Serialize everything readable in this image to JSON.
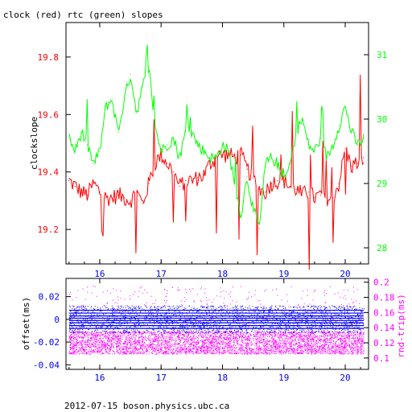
{
  "chart_data": [
    {
      "type": "line",
      "title": "clock (red) rtc (green) slopes",
      "ylabel": "clockslope",
      "xlim": [
        15.45,
        20.38
      ],
      "x_ticks": [
        16,
        17,
        18,
        19,
        20
      ],
      "left_axis": {
        "ylim": [
          19.08,
          19.92
        ],
        "ticks": [
          19.2,
          19.4,
          19.6,
          19.8
        ],
        "color": "#ff0000"
      },
      "right_axis": {
        "ylim": [
          27.75,
          31.5
        ],
        "ticks": [
          28,
          29,
          30,
          31
        ],
        "color": "#00ff00"
      },
      "series": [
        {
          "axis": "left",
          "color": "#ff0000",
          "x": [
            15.5,
            15.6,
            15.7,
            15.8,
            15.9,
            16.0,
            16.1,
            16.2,
            16.3,
            16.4,
            16.5,
            16.6,
            16.7,
            16.8,
            16.9,
            17.0,
            17.1,
            17.2,
            17.3,
            17.4,
            17.5,
            17.6,
            17.7,
            17.8,
            17.9,
            18.0,
            18.1,
            18.2,
            18.3,
            18.4,
            18.5,
            18.6,
            18.7,
            18.8,
            18.9,
            19.0,
            19.1,
            19.2,
            19.3,
            19.4,
            19.5,
            19.6,
            19.7,
            19.8,
            19.9,
            20.0,
            20.1,
            20.2,
            20.3
          ],
          "y": [
            19.37,
            19.35,
            19.33,
            19.32,
            19.36,
            19.33,
            19.31,
            19.31,
            19.32,
            19.31,
            19.3,
            19.33,
            19.29,
            19.36,
            19.43,
            19.46,
            19.43,
            19.4,
            19.35,
            19.37,
            19.37,
            19.38,
            19.39,
            19.43,
            19.45,
            19.46,
            19.46,
            19.45,
            19.46,
            19.41,
            19.38,
            19.34,
            19.33,
            19.36,
            19.37,
            19.37,
            19.35,
            19.34,
            19.32,
            19.33,
            19.31,
            19.32,
            19.31,
            19.31,
            19.36,
            19.48,
            19.42,
            19.43,
            19.45
          ]
        },
        {
          "axis": "right",
          "color": "#00ff00",
          "x": [
            15.5,
            15.6,
            15.7,
            15.8,
            15.9,
            16.0,
            16.1,
            16.2,
            16.3,
            16.4,
            16.5,
            16.6,
            16.7,
            16.8,
            16.9,
            17.0,
            17.1,
            17.2,
            17.3,
            17.4,
            17.5,
            17.6,
            17.7,
            17.8,
            17.9,
            18.0,
            18.1,
            18.2,
            18.3,
            18.4,
            18.5,
            18.6,
            18.7,
            18.8,
            18.9,
            19.0,
            19.1,
            19.2,
            19.3,
            19.4,
            19.5,
            19.6,
            19.7,
            19.8,
            19.9,
            20.0,
            20.1,
            20.2,
            20.3
          ],
          "y": [
            29.7,
            29.5,
            29.8,
            29.6,
            29.3,
            29.5,
            30.2,
            30.3,
            29.8,
            30.3,
            30.7,
            30.1,
            30.5,
            30.8,
            29.9,
            29.5,
            29.6,
            29.7,
            29.4,
            29.8,
            29.8,
            29.6,
            29.5,
            29.4,
            29.4,
            29.6,
            29.5,
            29.0,
            28.5,
            29.1,
            28.6,
            28.3,
            29.3,
            29.4,
            29.3,
            29.0,
            29.3,
            29.8,
            30.0,
            29.6,
            29.5,
            29.7,
            29.4,
            29.6,
            29.9,
            30.2,
            29.8,
            29.6,
            29.7
          ]
        }
      ]
    },
    {
      "type": "scatter",
      "xlim": [
        15.45,
        20.38
      ],
      "x_ticks": [
        16,
        17,
        18,
        19,
        20
      ],
      "ylabel": "offset(ms)",
      "y2label": "rnd-trip(ms)",
      "left_axis": {
        "ylim": [
          -0.044,
          0.036
        ],
        "ticks": [
          -0.04,
          -0.02,
          0,
          0.02
        ],
        "tick_labels": [
          "-0.04",
          "-0.02",
          "0",
          "0.02"
        ],
        "color": "#0000ff"
      },
      "right_axis": {
        "ylim": [
          0.085,
          0.205
        ],
        "ticks": [
          0.1,
          0.12,
          0.14,
          0.16,
          0.18,
          0.2
        ],
        "tick_labels": [
          "0.1",
          "0.12",
          "0.14",
          "0.16",
          "0.18",
          "0.2"
        ],
        "color": "#ff00ff"
      },
      "series": [
        {
          "axis": "left",
          "color": "#0000ff",
          "x_range": [
            15.5,
            20.3
          ],
          "level_values": [
            0.008,
            0.0055,
            0.003,
            0.001,
            -0.001,
            -0.003,
            -0.0055,
            -0.008
          ],
          "scatter_range": [
            -0.012,
            0.012
          ]
        },
        {
          "axis": "right",
          "color": "#ff00ff",
          "x_range": [
            15.5,
            20.3
          ],
          "band": [
            0.105,
            0.135
          ]
        }
      ]
    }
  ],
  "footer": "2012-07-15  boson.physics.ubc.ca"
}
